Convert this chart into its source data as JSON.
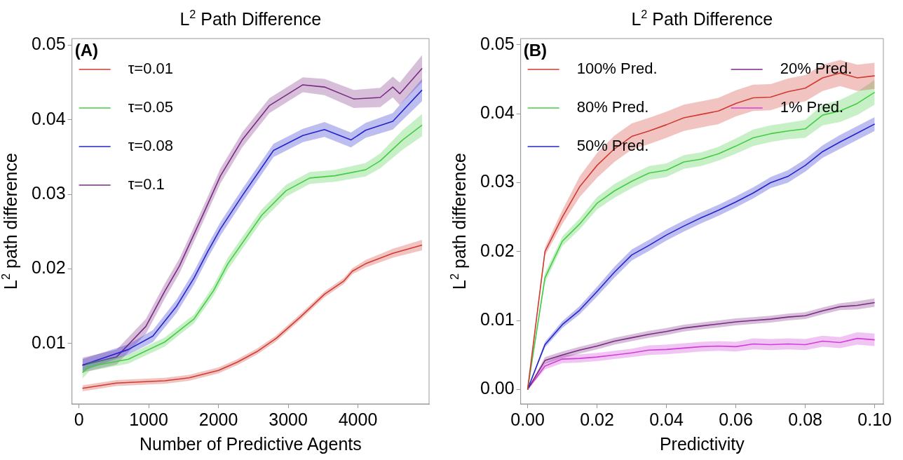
{
  "chart_data": [
    {
      "type": "line",
      "title": "L$^{2}$ Path Difference",
      "xlabel": "Number of Predictive Agents",
      "ylabel": "L$^{2}$ path difference",
      "annotations": [
        "(A)"
      ],
      "legend": "top left",
      "grid": false,
      "xlim": [
        -100,
        5020
      ],
      "xticks": [
        0,
        1000,
        2000,
        3000,
        4000
      ],
      "ylim": [
        0.0019,
        0.0509
      ],
      "yticks": [
        0.01,
        0.02,
        0.03,
        0.04,
        0.05
      ],
      "series": [
        {
          "name": "τ=0.01",
          "color": "#d03a32",
          "x": [
            50,
            540,
            1230,
            1580,
            2000,
            2270,
            2550,
            2830,
            3180,
            3520,
            3800,
            3920,
            4110,
            4500,
            4920
          ],
          "values": [
            0.004,
            0.0047,
            0.005,
            0.0054,
            0.0064,
            0.0075,
            0.0089,
            0.0107,
            0.0136,
            0.0166,
            0.0184,
            0.0197,
            0.0207,
            0.0221,
            0.0232
          ],
          "lower": [
            0.0036,
            0.0043,
            0.0046,
            0.005,
            0.006,
            0.0071,
            0.0085,
            0.0103,
            0.0132,
            0.0162,
            0.018,
            0.0193,
            0.0202,
            0.0215,
            0.0225
          ],
          "upper": [
            0.0044,
            0.0051,
            0.0054,
            0.0058,
            0.0068,
            0.0079,
            0.0093,
            0.0111,
            0.014,
            0.017,
            0.0188,
            0.0201,
            0.0212,
            0.0227,
            0.0239
          ]
        },
        {
          "name": "τ=0.05",
          "color": "#44cc44",
          "x": [
            50,
            150,
            710,
            1230,
            1650,
            1930,
            2135,
            2620,
            2970,
            3310,
            3670,
            4110,
            4320,
            4640,
            4920
          ],
          "values": [
            0.0061,
            0.0069,
            0.0079,
            0.0102,
            0.0133,
            0.0171,
            0.0207,
            0.0272,
            0.0305,
            0.0322,
            0.0325,
            0.0333,
            0.0345,
            0.0373,
            0.0393
          ],
          "lower": [
            0.0053,
            0.0063,
            0.0073,
            0.0096,
            0.0127,
            0.0164,
            0.0199,
            0.0264,
            0.0297,
            0.0314,
            0.0317,
            0.0324,
            0.0335,
            0.036,
            0.0378
          ],
          "upper": [
            0.0069,
            0.0075,
            0.0085,
            0.0108,
            0.0139,
            0.0178,
            0.0215,
            0.028,
            0.0313,
            0.033,
            0.0333,
            0.0342,
            0.0355,
            0.0386,
            0.0408
          ]
        },
        {
          "name": "τ=0.08",
          "color": "#2424cc",
          "x": [
            50,
            710,
            1060,
            1400,
            1650,
            1850,
            2030,
            2340,
            2790,
            3210,
            3520,
            3900,
            4110,
            4500,
            4920
          ],
          "values": [
            0.0071,
            0.0092,
            0.011,
            0.015,
            0.0188,
            0.0224,
            0.0254,
            0.0298,
            0.0359,
            0.0379,
            0.0387,
            0.0373,
            0.0386,
            0.0398,
            0.044
          ],
          "lower": [
            0.0063,
            0.0085,
            0.0102,
            0.0141,
            0.0179,
            0.0215,
            0.0245,
            0.0289,
            0.035,
            0.037,
            0.0377,
            0.0363,
            0.0376,
            0.0387,
            0.0425
          ],
          "upper": [
            0.0079,
            0.0099,
            0.0118,
            0.0159,
            0.0197,
            0.0233,
            0.0263,
            0.0307,
            0.0368,
            0.0388,
            0.0397,
            0.0383,
            0.0396,
            0.0409,
            0.0455
          ]
        },
        {
          "name": "τ=0.1",
          "color": "#7a2a86",
          "x": [
            50,
            540,
            960,
            1230,
            1440,
            1750,
            2030,
            2340,
            2730,
            3210,
            3520,
            3940,
            4320,
            4500,
            4600,
            4920
          ],
          "values": [
            0.0071,
            0.0082,
            0.0123,
            0.017,
            0.0204,
            0.0267,
            0.0325,
            0.0373,
            0.0419,
            0.0447,
            0.0444,
            0.0428,
            0.043,
            0.0444,
            0.0435,
            0.0469
          ],
          "lower": [
            0.0061,
            0.0072,
            0.0113,
            0.016,
            0.0194,
            0.0257,
            0.0315,
            0.0363,
            0.0409,
            0.0437,
            0.0433,
            0.0416,
            0.0417,
            0.043,
            0.042,
            0.0451
          ],
          "upper": [
            0.0081,
            0.0092,
            0.0133,
            0.018,
            0.0214,
            0.0277,
            0.0335,
            0.0383,
            0.0429,
            0.0457,
            0.0455,
            0.044,
            0.0443,
            0.0458,
            0.045,
            0.0487
          ]
        }
      ]
    },
    {
      "type": "line",
      "title": "L$^{2}$ Path Difference",
      "xlabel": "Predictivity",
      "ylabel": "L$^{2}$ path difference",
      "annotations": [
        "(B)"
      ],
      "legend": "top left",
      "grid": false,
      "xlim": [
        -0.002,
        0.1025
      ],
      "xticks": [
        {
          "value": 0,
          "label": "0.00"
        },
        0.02,
        0.04,
        0.06,
        0.08,
        {
          "value": 0.1,
          "label": "0.10"
        }
      ],
      "ylim": [
        -0.0021,
        0.0509
      ],
      "yticks": [
        {
          "value": 0,
          "label": "0.00"
        },
        0.01,
        0.02,
        0.03,
        0.04,
        0.05
      ],
      "x": [
        0,
        0.005,
        0.01,
        0.015,
        0.02,
        0.025,
        0.03,
        0.035,
        0.04,
        0.045,
        0.05,
        0.055,
        0.06,
        0.065,
        0.07,
        0.075,
        0.08,
        0.085,
        0.09,
        0.095,
        0.1
      ],
      "series": [
        {
          "name": "100% Pred.",
          "color": "#d03a32",
          "values": [
            0,
            0.02,
            0.025,
            0.0294,
            0.0325,
            0.0349,
            0.0367,
            0.0375,
            0.0384,
            0.0394,
            0.0399,
            0.0404,
            0.0415,
            0.0423,
            0.0424,
            0.0432,
            0.0437,
            0.0452,
            0.0459,
            0.0452,
            0.0455
          ],
          "lower": [
            0,
            0.0194,
            0.024,
            0.0279,
            0.0307,
            0.033,
            0.0348,
            0.0356,
            0.0365,
            0.0375,
            0.038,
            0.0385,
            0.0396,
            0.0404,
            0.0405,
            0.0413,
            0.0418,
            0.0433,
            0.044,
            0.0433,
            0.0436
          ],
          "upper": [
            0,
            0.0206,
            0.026,
            0.0309,
            0.0343,
            0.0368,
            0.0386,
            0.0394,
            0.0403,
            0.0413,
            0.0418,
            0.0423,
            0.0434,
            0.0442,
            0.0443,
            0.0451,
            0.0456,
            0.0471,
            0.0478,
            0.0471,
            0.0474
          ]
        },
        {
          "name": "80% Pred.",
          "color": "#44cc44",
          "values": [
            0,
            0.0162,
            0.0215,
            0.024,
            0.027,
            0.0288,
            0.0302,
            0.0314,
            0.0318,
            0.033,
            0.0334,
            0.0342,
            0.0353,
            0.0365,
            0.0371,
            0.0375,
            0.0378,
            0.0398,
            0.0404,
            0.0415,
            0.0431
          ],
          "lower": [
            0,
            0.0155,
            0.0208,
            0.0232,
            0.0261,
            0.0278,
            0.0292,
            0.0304,
            0.0308,
            0.032,
            0.0324,
            0.0332,
            0.0342,
            0.0353,
            0.0359,
            0.0363,
            0.0365,
            0.0383,
            0.0388,
            0.0398,
            0.0413
          ],
          "upper": [
            0,
            0.0169,
            0.0222,
            0.0248,
            0.0279,
            0.0298,
            0.0312,
            0.0324,
            0.0328,
            0.034,
            0.0344,
            0.0352,
            0.0364,
            0.0377,
            0.0383,
            0.0387,
            0.0391,
            0.0413,
            0.042,
            0.0432,
            0.0449
          ]
        },
        {
          "name": "50% Pred.",
          "color": "#2424cc",
          "values": [
            0,
            0.0065,
            0.0094,
            0.0115,
            0.0142,
            0.017,
            0.0195,
            0.0209,
            0.0224,
            0.0237,
            0.0249,
            0.026,
            0.0272,
            0.0285,
            0.03,
            0.0309,
            0.0325,
            0.0345,
            0.0359,
            0.0372,
            0.0385
          ],
          "lower": [
            0,
            0.0061,
            0.0089,
            0.0109,
            0.0135,
            0.0162,
            0.0187,
            0.0201,
            0.0216,
            0.0229,
            0.0241,
            0.0252,
            0.0264,
            0.0277,
            0.0292,
            0.03,
            0.0316,
            0.0336,
            0.0349,
            0.0362,
            0.0375
          ],
          "upper": [
            0,
            0.0069,
            0.0099,
            0.0121,
            0.0149,
            0.0178,
            0.0203,
            0.0217,
            0.0232,
            0.0245,
            0.0257,
            0.0268,
            0.028,
            0.0293,
            0.0308,
            0.0318,
            0.0334,
            0.0354,
            0.0369,
            0.0382,
            0.0395
          ]
        },
        {
          "name": "20% Pred.",
          "color": "#7a2a86",
          "values": [
            0,
            0.0042,
            0.005,
            0.0057,
            0.0063,
            0.007,
            0.0075,
            0.008,
            0.0084,
            0.0089,
            0.0092,
            0.0095,
            0.0098,
            0.01,
            0.0102,
            0.0105,
            0.0107,
            0.0114,
            0.012,
            0.0122,
            0.0126
          ],
          "lower": [
            0,
            0.0037,
            0.0045,
            0.0052,
            0.0058,
            0.0065,
            0.007,
            0.0075,
            0.0079,
            0.0084,
            0.0087,
            0.009,
            0.0093,
            0.0095,
            0.0097,
            0.01,
            0.0102,
            0.0109,
            0.0115,
            0.0116,
            0.012
          ],
          "upper": [
            0,
            0.0047,
            0.0055,
            0.0062,
            0.0068,
            0.0075,
            0.008,
            0.0085,
            0.0089,
            0.0094,
            0.0097,
            0.01,
            0.0103,
            0.0105,
            0.0107,
            0.011,
            0.0112,
            0.0119,
            0.0125,
            0.0128,
            0.0132
          ]
        },
        {
          "name": "1% Pred.",
          "color": "#d040d8",
          "values": [
            0,
            0.0034,
            0.0044,
            0.0045,
            0.0047,
            0.005,
            0.0053,
            0.0057,
            0.0058,
            0.006,
            0.0062,
            0.0063,
            0.0062,
            0.0066,
            0.0065,
            0.0066,
            0.0065,
            0.007,
            0.0068,
            0.0074,
            0.0072
          ],
          "lower": [
            0,
            0.0029,
            0.0038,
            0.0039,
            0.0041,
            0.0044,
            0.0047,
            0.005,
            0.0051,
            0.0053,
            0.0055,
            0.0056,
            0.0055,
            0.0058,
            0.0057,
            0.0058,
            0.0057,
            0.0062,
            0.006,
            0.0065,
            0.0063
          ],
          "upper": [
            0,
            0.0039,
            0.005,
            0.0051,
            0.0053,
            0.0056,
            0.0059,
            0.0064,
            0.0065,
            0.0067,
            0.0069,
            0.007,
            0.0069,
            0.0074,
            0.0073,
            0.0074,
            0.0073,
            0.0078,
            0.0076,
            0.0083,
            0.0081
          ]
        }
      ]
    }
  ]
}
